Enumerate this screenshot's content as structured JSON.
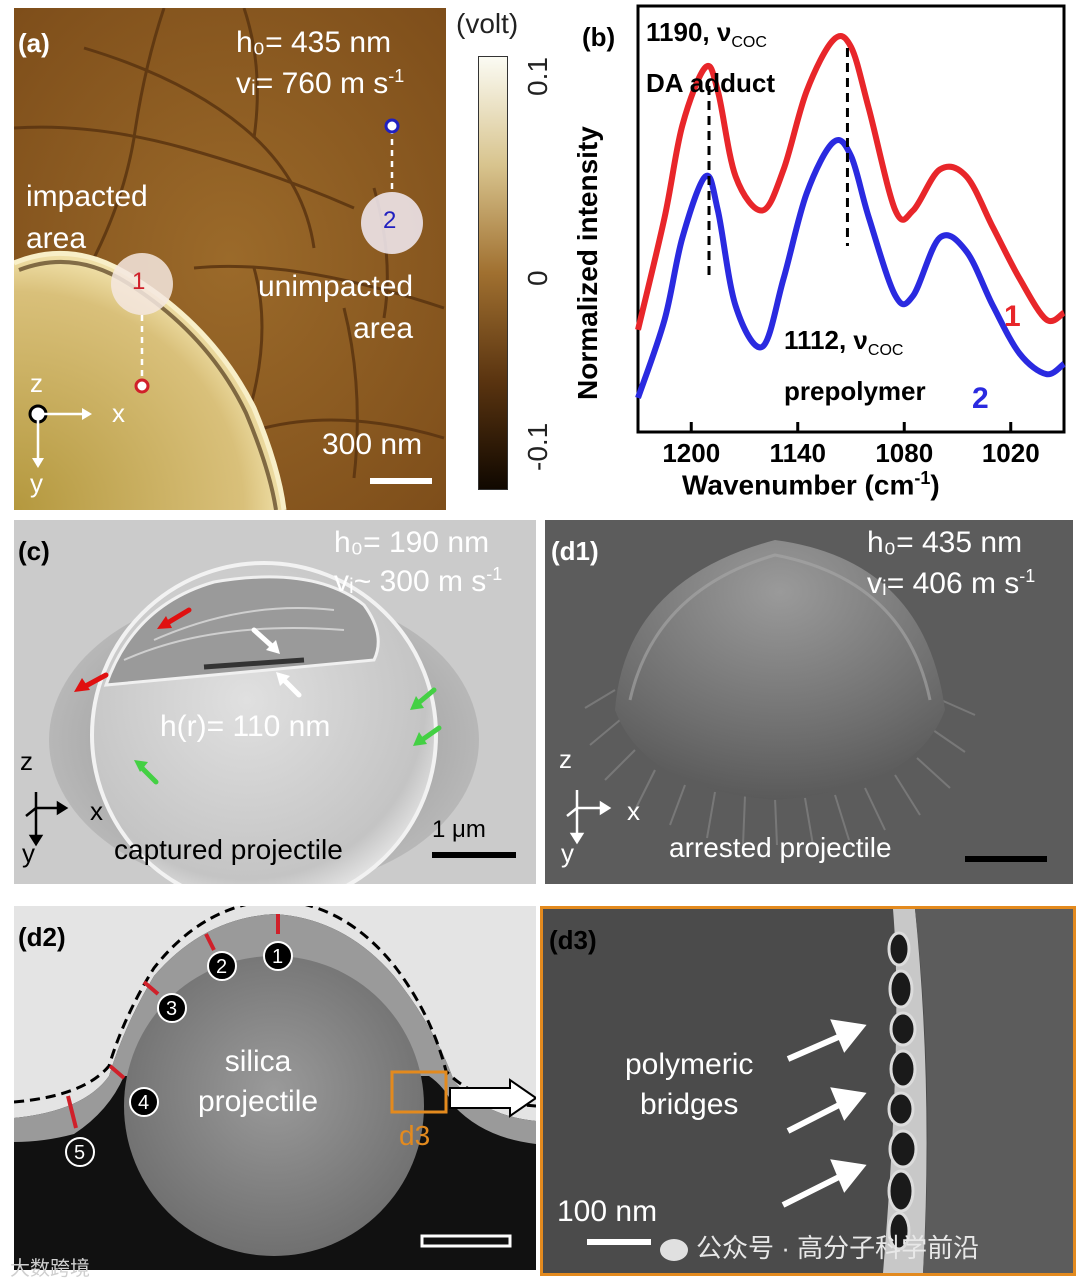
{
  "panel_a": {
    "label": "(a)",
    "h0": "h₀= 435 nm",
    "vi_base": "vᵢ= 760 m s",
    "vi_exp": "-1",
    "impacted": "impacted\narea",
    "unimpacted": "unimpacted\narea",
    "marker1": "1",
    "marker2": "2",
    "axis_z": "z",
    "axis_x": "x",
    "axis_y": "y",
    "scalebar": "300 nm",
    "colorbar_unit": "(volt)",
    "colorbar_ticks": [
      "0.1",
      "0",
      "-0.1"
    ]
  },
  "panel_b": {
    "label": "(b)",
    "ylabel": "Normalized intensity",
    "xlabel_base": "Wavenumber (cm",
    "xlabel_exp": "-1",
    "xlabel_tail": ")",
    "ann1_line1": "1190, ν",
    "ann1_sub": "COC",
    "ann1_line2": "DA adduct",
    "ann2_line1": "1112, ν",
    "ann2_sub": "COC",
    "ann2_line2": "prepolymer",
    "series1_label": "1",
    "series2_label": "2",
    "series1_color": "#e8262a",
    "series2_color": "#2a2ae0"
  },
  "chart_data": {
    "type": "line",
    "xlabel": "Wavenumber (cm-1)",
    "ylabel": "Normalized intensity",
    "xlim": [
      1230,
      990
    ],
    "x_ticks": [
      "1200",
      "1140",
      "1080",
      "1020"
    ],
    "series": [
      {
        "name": "1",
        "x": [
          1230,
          1215,
          1205,
          1192,
          1185,
          1175,
          1160,
          1148,
          1135,
          1120,
          1110,
          1100,
          1085,
          1075,
          1060,
          1045,
          1030,
          1015,
          1000,
          990
        ],
        "y": [
          0.15,
          0.48,
          0.75,
          0.92,
          0.85,
          0.6,
          0.5,
          0.62,
          0.85,
          1.0,
          0.98,
          0.8,
          0.5,
          0.5,
          0.62,
          0.6,
          0.45,
          0.3,
          0.18,
          0.2
        ]
      },
      {
        "name": "2",
        "x": [
          1230,
          1215,
          1205,
          1192,
          1185,
          1175,
          1160,
          1148,
          1135,
          1120,
          1110,
          1100,
          1085,
          1075,
          1060,
          1045,
          1030,
          1015,
          1000,
          990
        ],
        "y": [
          -0.05,
          0.18,
          0.42,
          0.6,
          0.5,
          0.22,
          0.1,
          0.3,
          0.55,
          0.7,
          0.66,
          0.48,
          0.25,
          0.25,
          0.42,
          0.38,
          0.22,
          0.08,
          0.02,
          0.05
        ]
      }
    ],
    "dashed_markers": [
      1190,
      1112
    ]
  },
  "panel_c": {
    "label": "(c)",
    "h0": "h₀= 190 nm",
    "vi_base": "vᵢ~ 300 m s",
    "vi_exp": "-1",
    "hr": "h(r)= 110 nm",
    "caption": "captured projectile",
    "scalebar": "1 μm",
    "axis_z": "z",
    "axis_x": "x",
    "axis_y": "y"
  },
  "panel_d1": {
    "label": "(d1)",
    "h0": "h₀= 435 nm",
    "vi_base": "vᵢ= 406 m s",
    "vi_exp": "-1",
    "caption": "arrested projectile",
    "axis_z": "z",
    "axis_x": "x",
    "axis_y": "y"
  },
  "panel_d2": {
    "label": "(d2)",
    "center_text": "silica\nprojectile",
    "inset_label": "d3",
    "markers": [
      "1",
      "2",
      "3",
      "4",
      "5"
    ]
  },
  "panel_d3": {
    "label": "(d3)",
    "caption": "polymeric\nbridges",
    "scalebar": "100 nm"
  },
  "watermark": {
    "left": "大数跨境",
    "right": "公众号 · 高分子科学前沿"
  },
  "colors": {
    "afm_brown": "#8a5a22",
    "orange_box": "#e38a1e",
    "red_marker": "#d0202a"
  }
}
